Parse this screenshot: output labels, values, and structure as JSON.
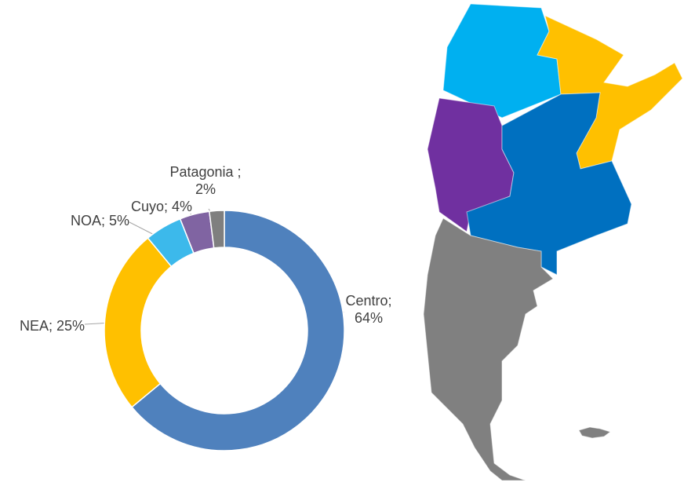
{
  "chart_data": {
    "type": "donut",
    "values": [
      64,
      25,
      5,
      4,
      2
    ],
    "value_labels": [
      "Centro; 64%",
      "NEA; 25%",
      "NOA; 5%",
      "Cuyo; 4%",
      "Patagonia ; 2%"
    ],
    "colors": [
      "#4f81bd",
      "#ffc000",
      "#3cb9eb",
      "#8064a2",
      "#7f7f7f"
    ]
  }
}
